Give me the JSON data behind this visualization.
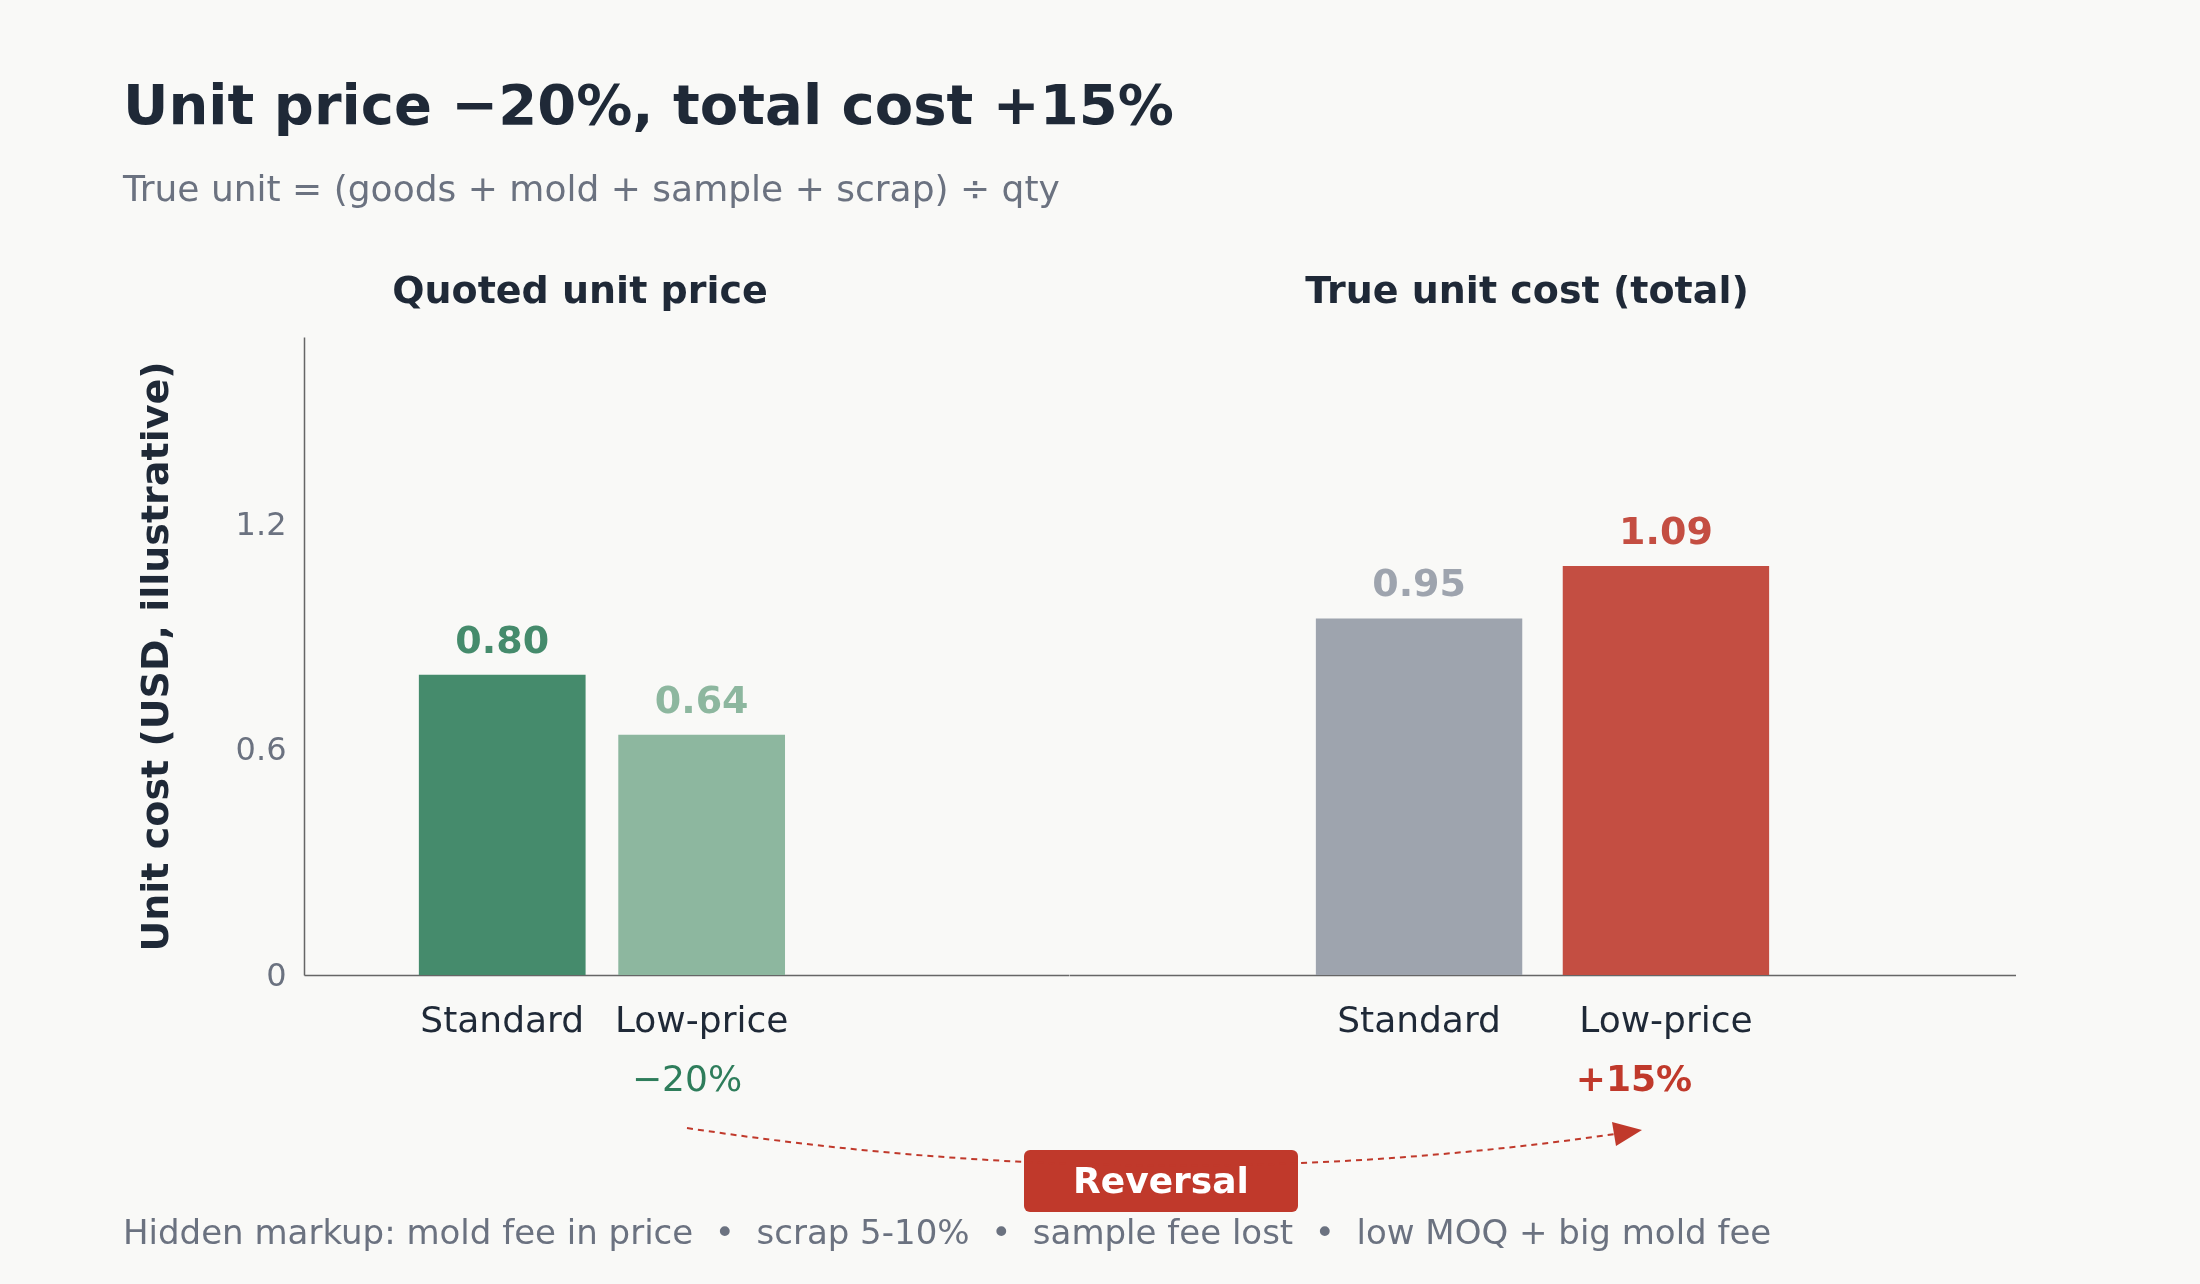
{
  "chart_data": [
    {
      "type": "bar",
      "title": "Unit price −20%, total cost +15%",
      "subtitle": "True unit = (goods + mold + sample + scrap) ÷ qty",
      "ylabel": "Unit cost (USD, illustrative)",
      "categories": [
        "Standard",
        "Low-price"
      ],
      "values": [
        0.8,
        0.64
      ],
      "colors": [
        "#458b6c",
        "#8db79f"
      ],
      "value_labels": [
        "0.80",
        "0.64"
      ],
      "ylim": [
        0,
        1.7
      ],
      "yticks": [
        0,
        0.6,
        1.2
      ],
      "annotations": [
        "Quoted unit price",
        "−20%"
      ]
    },
    {
      "type": "bar",
      "categories": [
        "Standard",
        "Low-price"
      ],
      "values": [
        0.95,
        1.09
      ],
      "colors": [
        "#9ea4ae",
        "#c44e42"
      ],
      "value_labels": [
        "0.95",
        "1.09"
      ],
      "tick_labels": "x",
      "annotations": [
        "True unit cost (total)",
        "+15%",
        "Reversal",
        "Hidden markup: mold fee in price  •  scrap 5-10%  •  sample fee lost  •  low MOQ + big mold fee"
      ]
    }
  ]
}
